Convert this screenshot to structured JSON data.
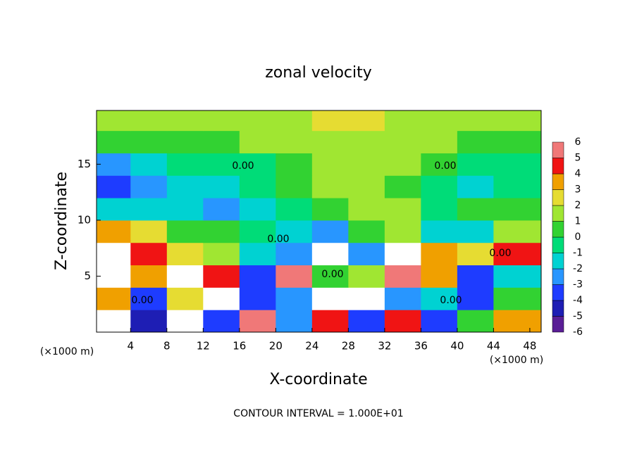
{
  "chart_data": {
    "type": "heatmap",
    "title": "zonal velocity",
    "x_label": "X-coordinate",
    "y_label": "Z-coordinate",
    "x_unit_label": "(×1000 m)",
    "note": "CONTOUR INTERVAL = 1.000E+01",
    "contour_label": "0.00",
    "xlim": [
      0.25,
      49.25
    ],
    "ylim": [
      0,
      19.8
    ],
    "xticks": [
      4,
      8,
      12,
      16,
      20,
      24,
      28,
      32,
      36,
      40,
      44,
      48
    ],
    "yticks": [
      5,
      10,
      15
    ],
    "x": [
      2,
      6,
      10,
      14,
      18,
      22,
      26,
      30,
      34,
      38,
      42,
      46
    ],
    "y": [
      1,
      3,
      5,
      7,
      9,
      11,
      13,
      15,
      17,
      19
    ],
    "z": [
      [
        7,
        -5,
        7,
        -4,
        5,
        -3,
        4,
        -4,
        4,
        -4,
        0,
        3
      ],
      [
        3,
        -4,
        2,
        7,
        -4,
        -3,
        6,
        7,
        -3,
        -2,
        -4,
        0
      ],
      [
        7,
        3,
        6,
        4,
        -4,
        5,
        0,
        1,
        5,
        3,
        -4,
        -2
      ],
      [
        7,
        4,
        2,
        1,
        -2,
        -3,
        7,
        -3,
        7,
        3,
        2,
        4
      ],
      [
        3,
        2,
        0,
        0,
        -1,
        -2,
        -3,
        0,
        1,
        -2,
        -2,
        1
      ],
      [
        -2,
        -2,
        -2,
        -3,
        -2,
        -1,
        0,
        1,
        1,
        -1,
        0,
        0
      ],
      [
        -4,
        -3,
        -2,
        -2,
        -1,
        0,
        1,
        1,
        0,
        -1,
        -2,
        -1
      ],
      [
        -3,
        -2,
        -1,
        -1,
        -1,
        0,
        1,
        1,
        1,
        0,
        -1,
        -1
      ],
      [
        0,
        0,
        0,
        0,
        1,
        1,
        1,
        1,
        1,
        1,
        0,
        0
      ],
      [
        1,
        1,
        1,
        1,
        1,
        1,
        2,
        2,
        1,
        1,
        1,
        1
      ]
    ],
    "levels": [
      -6,
      -5,
      -4,
      -3,
      -2,
      -1,
      0,
      1,
      2,
      3,
      4,
      5,
      6
    ],
    "colors": [
      "#5a1e96",
      "#1e1eb4",
      "#1e3cff",
      "#2896ff",
      "#00d2d2",
      "#00dc78",
      "#32d232",
      "#a0e632",
      "#e6dc32",
      "#f0a000",
      "#f01414",
      "#f07878"
    ],
    "above_color": "#ffffff",
    "below_color": "#6a0dad"
  }
}
